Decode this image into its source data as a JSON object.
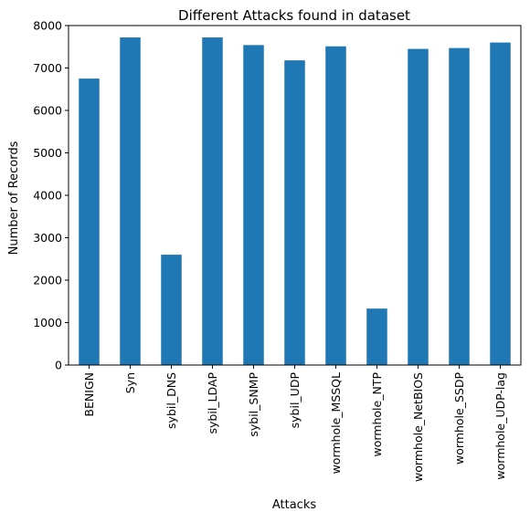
{
  "chart_data": {
    "type": "bar",
    "title": "Different Attacks found in dataset",
    "xlabel": "Attacks",
    "ylabel": "Number of Records",
    "categories": [
      "BENIGN",
      "Syn",
      "sybil_DNS",
      "sybil_LDAP",
      "sybil_SNMP",
      "sybil_UDP",
      "wormhole_MSSQL",
      "wormhole_NTP",
      "wormhole_NetBIOS",
      "wormhole_SSDP",
      "wormhole_UDP-lag"
    ],
    "values": [
      6750,
      7720,
      2600,
      7720,
      7540,
      7180,
      7510,
      1330,
      7450,
      7470,
      7600
    ],
    "ylim": [
      0,
      8000
    ],
    "yticks": [
      0,
      1000,
      2000,
      3000,
      4000,
      5000,
      6000,
      7000,
      8000
    ],
    "ytick_labels": [
      "0",
      "1000",
      "2000",
      "3000",
      "4000",
      "5000",
      "6000",
      "7000",
      "8000"
    ],
    "bar_color": "#1f77b4",
    "grid": false,
    "legend": "none"
  }
}
